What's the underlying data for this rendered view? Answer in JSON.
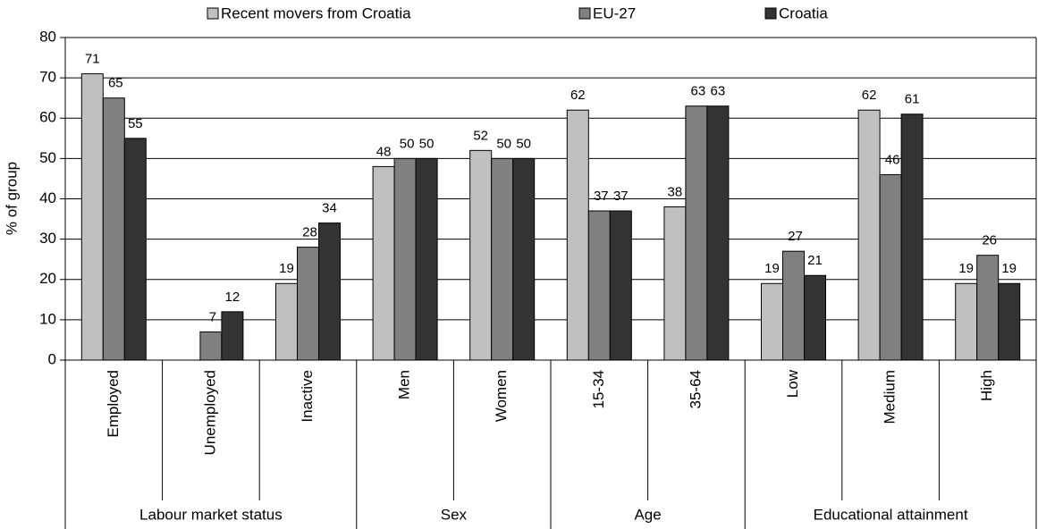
{
  "chart_data": {
    "type": "bar",
    "ylabel": "% of group",
    "groups": [
      {
        "name": "Labour market status",
        "categories": [
          "Employed",
          "Unemployed",
          "Inactive"
        ]
      },
      {
        "name": "Sex",
        "categories": [
          "Men",
          "Women"
        ]
      },
      {
        "name": "Age",
        "categories": [
          "15-34",
          "35-64"
        ]
      },
      {
        "name": "Educational attainment",
        "categories": [
          "Low",
          "Medium",
          "High"
        ]
      }
    ],
    "series": [
      {
        "name": "Recent movers from Croatia",
        "color": "#c0c0c0",
        "values": [
          71,
          null,
          19,
          48,
          52,
          62,
          38,
          19,
          62,
          19
        ]
      },
      {
        "name": "EU-27",
        "color": "#808080",
        "values": [
          65,
          7,
          28,
          50,
          50,
          37,
          63,
          27,
          46,
          26
        ]
      },
      {
        "name": "Croatia",
        "color": "#333333",
        "values": [
          55,
          12,
          34,
          50,
          50,
          37,
          63,
          21,
          61,
          19
        ]
      }
    ],
    "ylim": [
      0,
      80
    ],
    "yticks": [
      0,
      10,
      20,
      30,
      40,
      50,
      60,
      70,
      80
    ],
    "grid": true,
    "legend": "top"
  }
}
